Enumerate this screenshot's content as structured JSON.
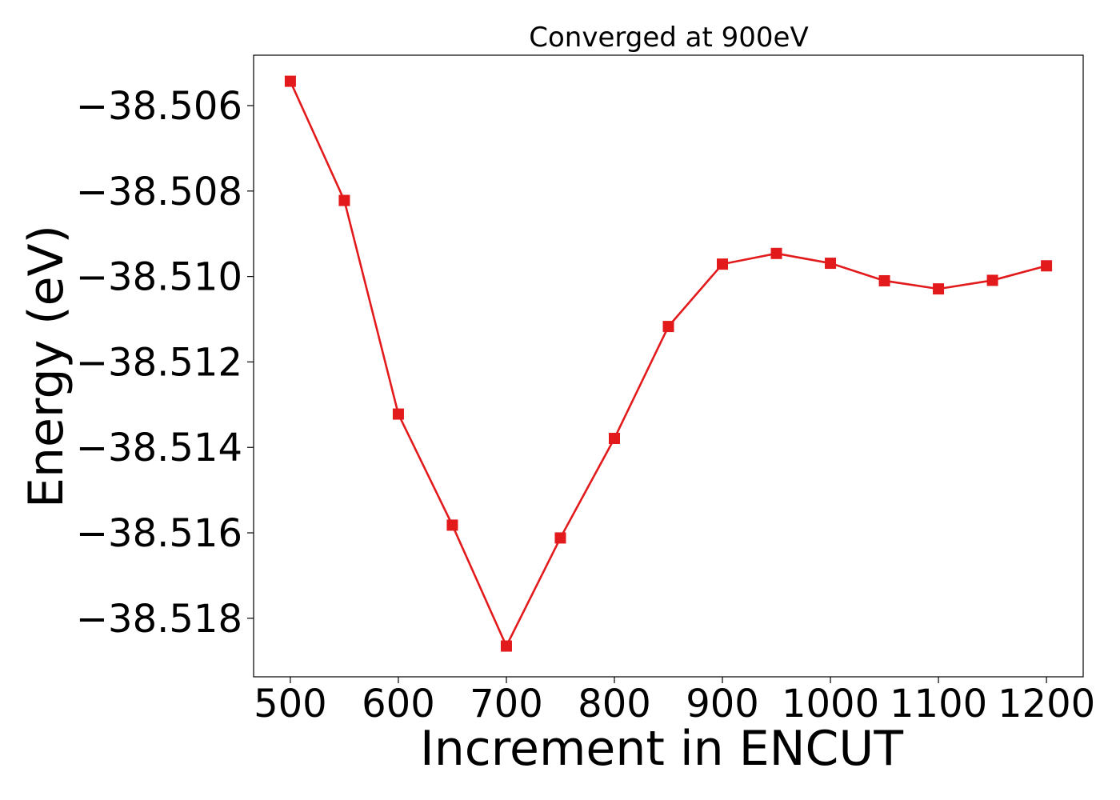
{
  "chart_data": {
    "type": "line",
    "title": "Converged at 900eV",
    "xlabel": "Increment in ENCUT",
    "ylabel": "Energy (eV)",
    "x": [
      500,
      550,
      600,
      650,
      700,
      750,
      800,
      850,
      900,
      950,
      1000,
      1050,
      1100,
      1150,
      1200
    ],
    "series": [
      {
        "values": [
          -38.50543,
          -38.50822,
          -38.51322,
          -38.51582,
          -38.51865,
          -38.51612,
          -38.51379,
          -38.51117,
          -38.50971,
          -38.50946,
          -38.50969,
          -38.5101,
          -38.51029,
          -38.51009,
          -38.50975
        ],
        "color": "#e31a1c",
        "marker": "square"
      }
    ],
    "xlim": [
      466,
      1234
    ],
    "ylim": [
      -38.51937,
      -38.50482
    ],
    "xticks": [
      500,
      600,
      700,
      800,
      900,
      1000,
      1100,
      1200
    ],
    "xtick_labels": [
      "500",
      "600",
      "700",
      "800",
      "900",
      "1000",
      "1100",
      "1200"
    ],
    "yticks": [
      -38.506,
      -38.508,
      -38.51,
      -38.512,
      -38.514,
      -38.516,
      -38.518
    ],
    "ytick_labels": [
      "−38.506",
      "−38.508",
      "−38.510",
      "−38.512",
      "−38.514",
      "−38.516",
      "−38.518"
    ],
    "grid": false,
    "legend": "none"
  }
}
